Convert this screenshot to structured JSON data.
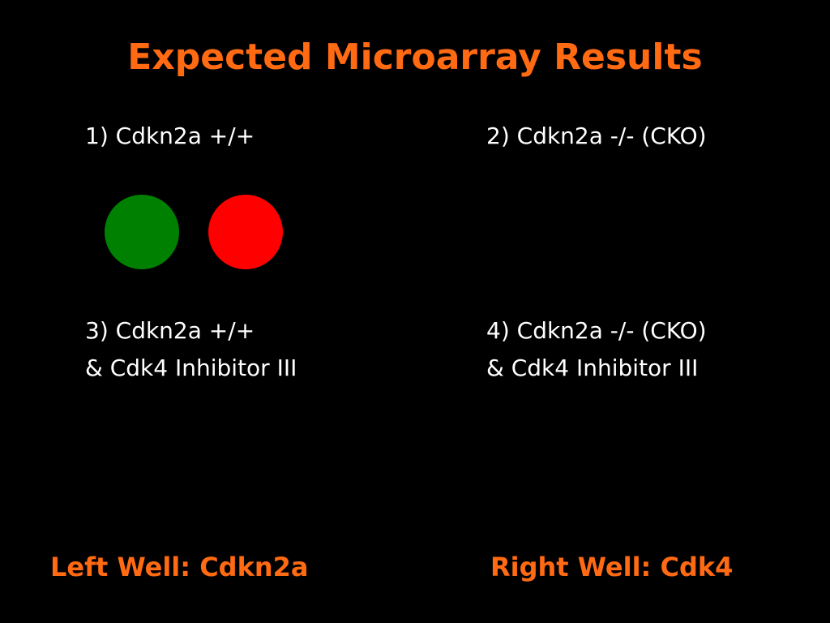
{
  "title": "Expected Microarray Results",
  "quadrants": [
    {
      "lines": [
        "1) Cdkn2a +/+"
      ]
    },
    {
      "lines": [
        "2) Cdkn2a -/- (CKO)"
      ]
    },
    {
      "lines": [
        "3) Cdkn2a +/+",
        "& Cdk4 Inhibitor III"
      ]
    },
    {
      "lines": [
        "4) Cdkn2a -/- (CKO)",
        "& Cdk4 Inhibitor III"
      ]
    }
  ],
  "footer": {
    "left": "Left Well: Cdkn2a",
    "right": "Right Well: Cdk4"
  }
}
